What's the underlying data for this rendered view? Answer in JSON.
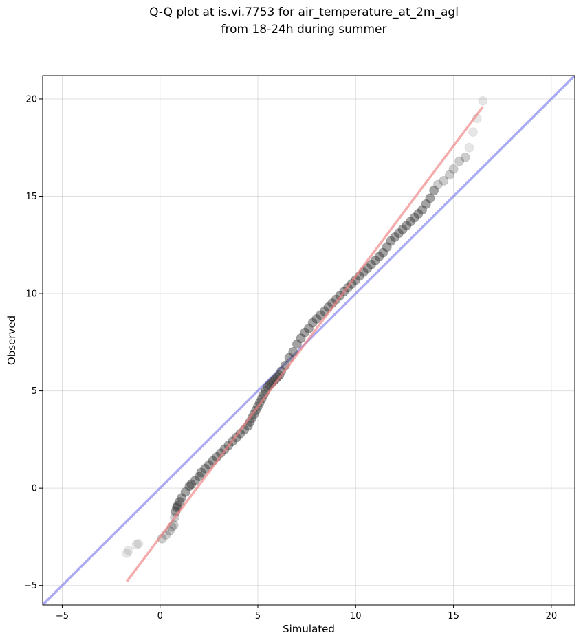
{
  "chart_data": {
    "type": "scatter",
    "title_line1": "Q-Q plot at is.vi.7753 for air_temperature_at_2m_agl",
    "title_line2": "from 18-24h during summer",
    "xlabel": "Simulated",
    "ylabel": "Observed",
    "xlim": [
      -6.0,
      21.2
    ],
    "ylim": [
      -6.0,
      21.2
    ],
    "xticks": [
      -5,
      0,
      5,
      10,
      15,
      20
    ],
    "yticks": [
      -5,
      0,
      5,
      10,
      15,
      20
    ],
    "xtick_labels": [
      "−5",
      "0",
      "5",
      "10",
      "15",
      "20"
    ],
    "ytick_labels": [
      "−5",
      "0",
      "5",
      "10",
      "15",
      "20"
    ],
    "grid": true,
    "reference_line": {
      "color": "#8080f0",
      "x": [
        -6.0,
        21.2
      ],
      "y": [
        -6.0,
        21.2
      ]
    },
    "fit_line": {
      "color": "#f08080",
      "x": [
        -1.7,
        16.5
      ],
      "y": [
        -4.8,
        19.6
      ]
    },
    "quantiles": {
      "color": "#333333",
      "x": [
        -1.7,
        -1.6,
        -1.2,
        -1.1,
        0.1,
        0.3,
        0.5,
        0.6,
        0.7,
        0.75,
        0.8,
        0.85,
        0.9,
        1.0,
        1.1,
        1.3,
        1.5,
        1.6,
        1.8,
        2.0,
        2.1,
        2.3,
        2.5,
        2.7,
        2.9,
        3.1,
        3.3,
        3.5,
        3.7,
        3.9,
        4.1,
        4.3,
        4.5,
        4.6,
        4.7,
        4.8,
        4.9,
        5.0,
        5.1,
        5.2,
        5.3,
        5.4,
        5.5,
        5.6,
        5.7,
        5.8,
        5.9,
        6.0,
        6.1,
        6.2,
        6.4,
        6.6,
        6.8,
        7.0,
        7.2,
        7.4,
        7.6,
        7.8,
        8.0,
        8.2,
        8.4,
        8.6,
        8.8,
        9.0,
        9.2,
        9.4,
        9.6,
        9.8,
        10.0,
        10.2,
        10.4,
        10.6,
        10.8,
        11.0,
        11.2,
        11.4,
        11.6,
        11.8,
        12.0,
        12.2,
        12.4,
        12.6,
        12.8,
        13.0,
        13.2,
        13.4,
        13.6,
        13.8,
        14.0,
        14.2,
        14.5,
        14.8,
        15.0,
        15.3,
        15.6,
        15.8,
        16.0,
        16.2,
        16.5
      ],
      "y": [
        -3.35,
        -3.2,
        -2.9,
        -2.85,
        -2.6,
        -2.4,
        -2.2,
        -2.0,
        -1.9,
        -1.5,
        -1.2,
        -1.0,
        -0.9,
        -0.7,
        -0.5,
        -0.2,
        0.1,
        0.2,
        0.4,
        0.6,
        0.8,
        1.0,
        1.2,
        1.4,
        1.6,
        1.8,
        2.0,
        2.2,
        2.4,
        2.6,
        2.8,
        3.0,
        3.2,
        3.4,
        3.6,
        3.8,
        4.0,
        4.2,
        4.4,
        4.6,
        4.8,
        5.0,
        5.2,
        5.3,
        5.4,
        5.5,
        5.6,
        5.7,
        5.8,
        6.0,
        6.3,
        6.7,
        7.0,
        7.4,
        7.7,
        8.0,
        8.2,
        8.5,
        8.7,
        8.9,
        9.1,
        9.3,
        9.5,
        9.7,
        9.9,
        10.1,
        10.3,
        10.5,
        10.7,
        10.9,
        11.1,
        11.3,
        11.5,
        11.7,
        11.9,
        12.1,
        12.4,
        12.7,
        12.9,
        13.1,
        13.3,
        13.5,
        13.7,
        13.9,
        14.1,
        14.3,
        14.6,
        14.9,
        15.3,
        15.6,
        15.8,
        16.1,
        16.4,
        16.8,
        17.0,
        17.5,
        18.3,
        19.0,
        19.9
      ]
    }
  }
}
